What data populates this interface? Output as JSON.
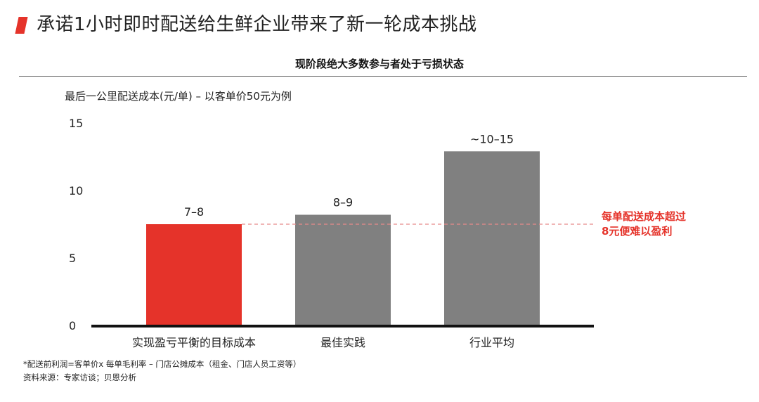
{
  "header": {
    "title": "承诺1小时即时配送给生鲜企业带来了新一轮成本挑战",
    "accent_color": "#e5332a"
  },
  "chart_data": {
    "type": "bar",
    "title": "现阶段绝大多数参与者处于亏损状态",
    "subtitle": "最后一公里配送成本(元/单) – 以客单价50元为例",
    "categories": [
      "实现盈亏平衡的目标成本",
      "最佳实践",
      "行业平均"
    ],
    "values": [
      7.5,
      8.2,
      12.9
    ],
    "data_labels": [
      "7–8",
      "8–9",
      "~10–15"
    ],
    "bar_colors": [
      "#e5332a",
      "#808080",
      "#808080"
    ],
    "ylim": [
      0,
      15
    ],
    "yticks": [
      0,
      5,
      10,
      15
    ],
    "ytick_labels": [
      "0",
      "5",
      "10",
      "15"
    ],
    "grid": false,
    "reference_line": {
      "value": 7.5,
      "color": "#e88a8a",
      "style": "dashed",
      "label": "每单配送成本超过\n8元便难以盈利",
      "label_color": "#e5332a"
    }
  },
  "footnotes": {
    "line1": "*配送前利润=客单价x 每单毛利率 – 门店公摊成本（租金、门店人员工资等）",
    "line2": "资料来源：专家访谈；贝恩分析"
  }
}
